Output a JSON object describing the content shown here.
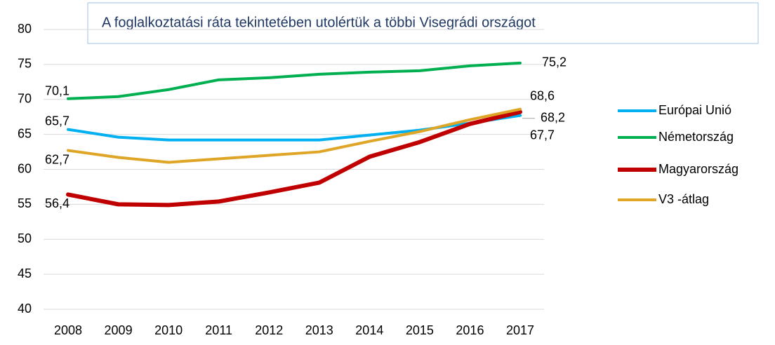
{
  "chart_data": {
    "type": "line",
    "title": "A foglalkoztatási ráta tekintetében utolértük a többi Visegrádi országot",
    "x": [
      2008,
      2009,
      2010,
      2011,
      2012,
      2013,
      2014,
      2015,
      2016,
      2017
    ],
    "series": [
      {
        "name": "Európai Unió",
        "color": "#00b0f0",
        "values": [
          65.7,
          64.6,
          64.2,
          64.2,
          64.2,
          64.2,
          64.9,
          65.6,
          66.6,
          67.7
        ],
        "value_labels": [
          "65,7",
          null,
          null,
          null,
          null,
          null,
          null,
          null,
          null,
          "67,7"
        ]
      },
      {
        "name": "Németország",
        "color": "#00b050",
        "values": [
          70.1,
          70.4,
          71.4,
          72.8,
          73.1,
          73.6,
          73.9,
          74.1,
          74.8,
          75.2
        ],
        "value_labels": [
          "70,1",
          null,
          null,
          null,
          null,
          null,
          null,
          null,
          null,
          "75,2"
        ]
      },
      {
        "name": "Magyarország",
        "color": "#c00000",
        "values": [
          56.4,
          55.0,
          54.9,
          55.4,
          56.7,
          58.1,
          61.8,
          63.9,
          66.5,
          68.2
        ],
        "value_labels": [
          "56,4",
          null,
          null,
          null,
          null,
          null,
          null,
          null,
          null,
          "68,2"
        ]
      },
      {
        "name": "V3 -átlag",
        "color": "#dfa526",
        "values": [
          62.7,
          61.7,
          61.0,
          61.5,
          62.0,
          62.5,
          64.0,
          65.4,
          67.1,
          68.6
        ],
        "value_labels": [
          "62,7",
          null,
          null,
          null,
          null,
          null,
          null,
          null,
          null,
          "68,6"
        ]
      }
    ],
    "ylim": [
      40,
      80
    ],
    "yticks": [
      40,
      45,
      50,
      55,
      60,
      65,
      70,
      75,
      80
    ],
    "grid": true,
    "legend": "right"
  }
}
